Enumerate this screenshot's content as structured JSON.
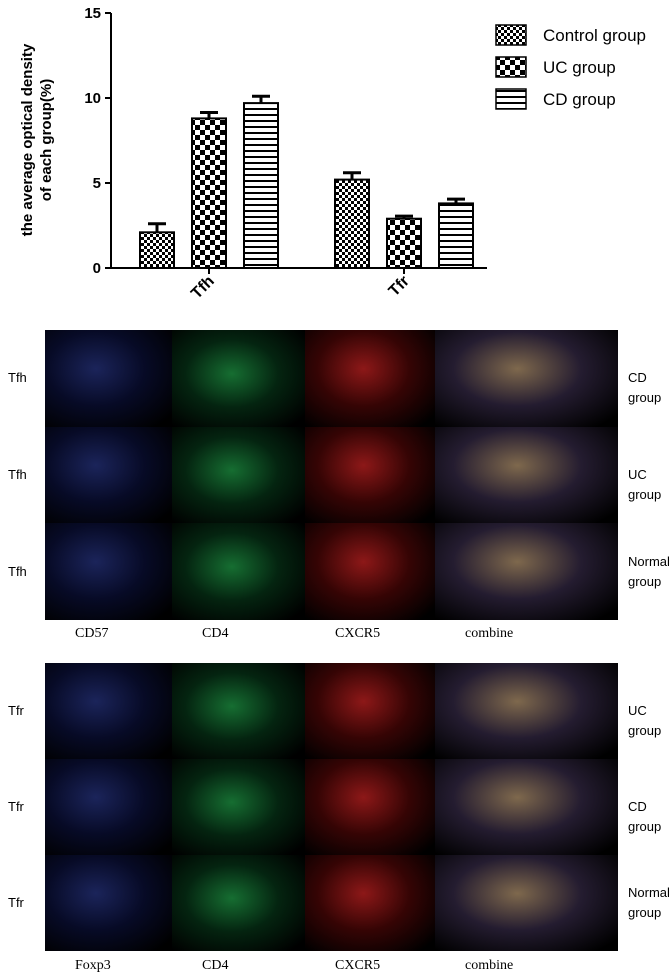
{
  "chart_data": {
    "type": "bar",
    "ylabel": "the average optical density of each group(%)",
    "ylabel_lines": [
      "the average optical density",
      "of each group(%)"
    ],
    "ylim": [
      0,
      15
    ],
    "yticks": [
      "0",
      "5",
      "10",
      "15"
    ],
    "categories": [
      "Tfh",
      "Tfr"
    ],
    "series": [
      {
        "name": "Control group",
        "values": [
          2.1,
          5.2
        ],
        "errors": [
          0.5,
          0.4
        ],
        "pattern": "checker-fine"
      },
      {
        "name": "UC group",
        "values": [
          8.8,
          2.9
        ],
        "errors": [
          0.35,
          0.15
        ],
        "pattern": "checker-coarse"
      },
      {
        "name": "CD group",
        "values": [
          9.7,
          3.8
        ],
        "errors": [
          0.4,
          0.25
        ],
        "pattern": "hstripes"
      }
    ],
    "legend_position": "top-right",
    "grid": false
  },
  "panel_top": {
    "columns": [
      "CD57",
      "CD4",
      "CXCR5",
      "combine"
    ],
    "rows": [
      {
        "label": "Tfh",
        "group_lines": [
          "CD group"
        ]
      },
      {
        "label": "Tfh",
        "group_lines": [
          "UC group"
        ]
      },
      {
        "label": "Tfh",
        "group_lines": [
          "Normal",
          "group"
        ]
      }
    ]
  },
  "panel_bottom": {
    "columns": [
      "Foxp3",
      "CD4",
      "CXCR5",
      "combine"
    ],
    "rows": [
      {
        "label": "Tfr",
        "group_lines": [
          "UC group"
        ]
      },
      {
        "label": "Tfr",
        "group_lines": [
          "CD group"
        ]
      },
      {
        "label": "Tfr",
        "group_lines": [
          "Normal",
          "group"
        ]
      }
    ]
  },
  "colors": {
    "blue": "#2c3fae",
    "green": "#1fb34a",
    "red": "#d81d22",
    "combine": "#c9a27a"
  }
}
